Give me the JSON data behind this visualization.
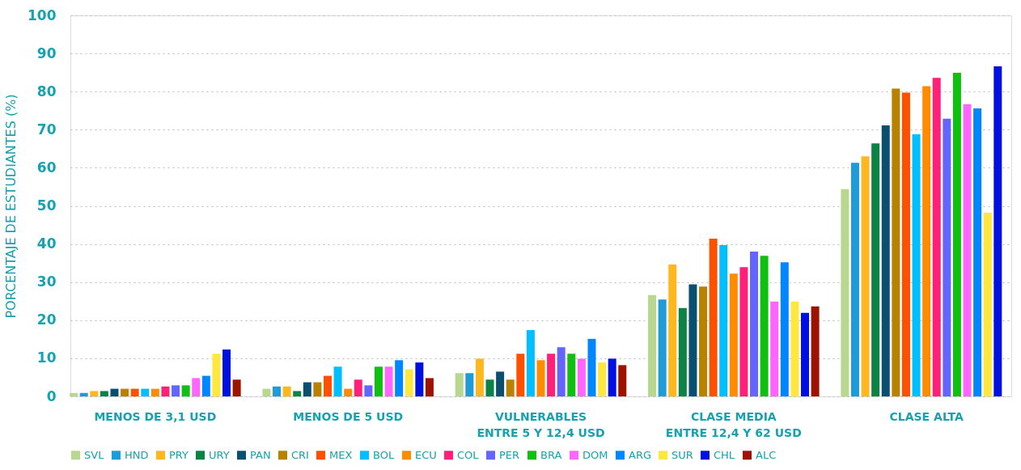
{
  "chart_data": {
    "type": "bar",
    "ylabel": "PORCENTAJE DE ESTUDIANTES (%)",
    "categories": [
      "MENOS DE 3,1 USD",
      "MENOS DE 5 USD",
      "VULNERABLES\nENTRE 5 Y 12,4 USD",
      "CLASE MEDIA\nENTRE 12,4 Y 62 USD",
      "CLASE ALTA"
    ],
    "ylim": [
      0,
      100
    ],
    "yticks": [
      0,
      10,
      20,
      30,
      40,
      50,
      60,
      70,
      80,
      90,
      100
    ],
    "grid": "y",
    "legend": "bottom",
    "series": [
      {
        "name": "SVL",
        "color": "#b8d78f",
        "values": [
          0.9,
          2.0,
          6.1,
          26.6,
          54.4
        ]
      },
      {
        "name": "HND",
        "color": "#1f9bd7",
        "values": [
          0.9,
          2.6,
          6.1,
          25.4,
          61.3
        ]
      },
      {
        "name": "PRY",
        "color": "#fdb71f",
        "values": [
          1.4,
          2.6,
          9.9,
          34.6,
          63.0
        ]
      },
      {
        "name": "URY",
        "color": "#0b8345",
        "values": [
          1.4,
          1.4,
          4.4,
          23.2,
          66.4
        ]
      },
      {
        "name": "PAN",
        "color": "#0a4f70",
        "values": [
          2.0,
          3.7,
          6.5,
          29.4,
          71.1
        ]
      },
      {
        "name": "CRI",
        "color": "#b88200",
        "values": [
          2.0,
          3.7,
          4.4,
          28.8,
          80.8
        ]
      },
      {
        "name": "MEX",
        "color": "#ff5000",
        "values": [
          2.0,
          5.4,
          11.2,
          41.4,
          79.7
        ]
      },
      {
        "name": "BOL",
        "color": "#00bfff",
        "values": [
          2.0,
          7.8,
          17.4,
          39.7,
          68.8
        ]
      },
      {
        "name": "ECU",
        "color": "#ff8c00",
        "values": [
          2.0,
          2.0,
          9.5,
          32.2,
          81.4
        ]
      },
      {
        "name": "COL",
        "color": "#ff2079",
        "values": [
          2.6,
          4.4,
          11.2,
          33.9,
          83.6
        ]
      },
      {
        "name": "PER",
        "color": "#6464ff",
        "values": [
          2.9,
          2.9,
          12.9,
          38.0,
          72.9
        ]
      },
      {
        "name": "BRA",
        "color": "#10c010",
        "values": [
          2.9,
          7.8,
          11.2,
          36.9,
          84.9
        ]
      },
      {
        "name": "DOM",
        "color": "#ff66ff",
        "values": [
          4.8,
          7.8,
          9.9,
          24.9,
          76.7
        ]
      },
      {
        "name": "ARG",
        "color": "#0087ff",
        "values": [
          5.4,
          9.5,
          15.1,
          35.2,
          75.6
        ]
      },
      {
        "name": "SUR",
        "color": "#ffe83d",
        "values": [
          11.2,
          7.1,
          8.9,
          24.9,
          48.2
        ]
      },
      {
        "name": "CHL",
        "color": "#0010e0",
        "values": [
          12.3,
          8.9,
          9.9,
          21.9,
          86.6
        ]
      },
      {
        "name": "ALC",
        "color": "#9e1300",
        "values": [
          4.4,
          4.8,
          8.2,
          23.6,
          null
        ]
      }
    ]
  }
}
